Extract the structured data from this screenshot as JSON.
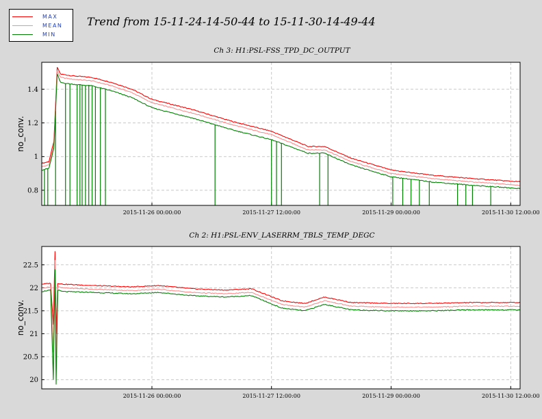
{
  "main_title": "Trend from 15-11-24-14-50-44 to 15-11-30-14-49-44",
  "legend": [
    {
      "label": "MAX",
      "color": "#ff0000"
    },
    {
      "label": "MEAN",
      "color": "#ff8c8c"
    },
    {
      "label": "MIN",
      "color": "#008000"
    }
  ],
  "chart_data": [
    {
      "type": "line",
      "title": "Ch 3: H1:PSL-FSS_TPD_DC_OUTPUT",
      "ylabel": "no_conv.",
      "xlabel": "",
      "ylim": [
        0.71,
        1.56
      ],
      "yticks": [
        0.8,
        1,
        1.2,
        1.4
      ],
      "ytick_labels": [
        "0.8",
        "1",
        "1.2",
        "1.4"
      ],
      "xlim": [
        "2015-11-24 14:50:44",
        "2015-11-30 14:49:44"
      ],
      "xticks": [
        "2015-11-26 00:00:00",
        "2015-11-27 12:00:00",
        "2015-11-29 00:00:00",
        "2015-11-30 12:00:00"
      ],
      "grid": true,
      "series": [
        {
          "name": "MAX",
          "color": "#ff0000",
          "x": [
            "2015-11-24 14:50:44",
            "2015-11-24 17:00:00",
            "2015-11-24 18:30:00",
            "2015-11-24 19:30:00",
            "2015-11-24 20:30:00",
            "2015-11-25 00:00:00",
            "2015-11-25 06:00:00",
            "2015-11-25 12:00:00",
            "2015-11-25 18:00:00",
            "2015-11-26 00:00:00",
            "2015-11-26 12:00:00",
            "2015-11-27 00:00:00",
            "2015-11-27 12:00:00",
            "2015-11-27 23:00:00",
            "2015-11-28 04:00:00",
            "2015-11-28 12:00:00",
            "2015-11-29 00:00:00",
            "2015-11-29 12:00:00",
            "2015-11-30 00:00:00",
            "2015-11-30 14:49:44"
          ],
          "y": [
            0.96,
            0.97,
            1.09,
            1.53,
            1.49,
            1.48,
            1.47,
            1.44,
            1.4,
            1.34,
            1.28,
            1.21,
            1.15,
            1.06,
            1.06,
            0.99,
            0.92,
            0.89,
            0.87,
            0.85
          ]
        },
        {
          "name": "MEAN",
          "color": "#ff8c8c",
          "x": [
            "2015-11-24 14:50:44",
            "2015-11-24 17:00:00",
            "2015-11-24 18:30:00",
            "2015-11-24 19:30:00",
            "2015-11-24 20:30:00",
            "2015-11-25 00:00:00",
            "2015-11-25 06:00:00",
            "2015-11-25 12:00:00",
            "2015-11-25 18:00:00",
            "2015-11-26 00:00:00",
            "2015-11-26 12:00:00",
            "2015-11-27 00:00:00",
            "2015-11-27 12:00:00",
            "2015-11-27 23:00:00",
            "2015-11-28 04:00:00",
            "2015-11-28 12:00:00",
            "2015-11-29 00:00:00",
            "2015-11-29 12:00:00",
            "2015-11-30 00:00:00",
            "2015-11-30 14:49:44"
          ],
          "y": [
            0.94,
            0.95,
            1.07,
            1.51,
            1.47,
            1.46,
            1.45,
            1.42,
            1.38,
            1.32,
            1.26,
            1.19,
            1.13,
            1.04,
            1.04,
            0.97,
            0.9,
            0.87,
            0.85,
            0.83
          ]
        },
        {
          "name": "MIN",
          "color": "#008000",
          "x": [
            "2015-11-24 14:50:44",
            "2015-11-24 17:00:00",
            "2015-11-24 18:30:00",
            "2015-11-24 19:30:00",
            "2015-11-24 20:30:00",
            "2015-11-25 00:00:00",
            "2015-11-25 06:00:00",
            "2015-11-25 12:00:00",
            "2015-11-25 18:00:00",
            "2015-11-26 00:00:00",
            "2015-11-26 12:00:00",
            "2015-11-27 00:00:00",
            "2015-11-27 12:00:00",
            "2015-11-27 23:00:00",
            "2015-11-28 04:00:00",
            "2015-11-28 12:00:00",
            "2015-11-29 00:00:00",
            "2015-11-29 12:00:00",
            "2015-11-30 00:00:00",
            "2015-11-30 14:49:44"
          ],
          "y": [
            0.92,
            0.93,
            1.05,
            1.49,
            1.44,
            1.43,
            1.42,
            1.39,
            1.35,
            1.29,
            1.23,
            1.16,
            1.1,
            1.02,
            1.02,
            0.95,
            0.88,
            0.85,
            0.83,
            0.81
          ]
        }
      ],
      "dropouts": {
        "series": "MIN",
        "y": 0.71,
        "x": [
          "2015-11-24 15:40:00",
          "2015-11-24 16:40:00",
          "2015-11-24 19:00:00",
          "2015-11-24 22:00:00",
          "2015-11-24 23:20:00",
          "2015-11-25 01:30:00",
          "2015-11-25 02:20:00",
          "2015-11-25 03:00:00",
          "2015-11-25 04:00:00",
          "2015-11-25 05:00:00",
          "2015-11-25 06:00:00",
          "2015-11-25 07:00:00",
          "2015-11-25 08:30:00",
          "2015-11-25 10:00:00",
          "2015-11-26 19:00:00",
          "2015-11-27 12:00:00",
          "2015-11-27 13:30:00",
          "2015-11-27 15:00:00",
          "2015-11-28 02:30:00",
          "2015-11-28 05:00:00",
          "2015-11-29 00:30:00",
          "2015-11-29 03:30:00",
          "2015-11-29 06:00:00",
          "2015-11-29 08:30:00",
          "2015-11-29 11:30:00",
          "2015-11-29 20:00:00",
          "2015-11-29 22:30:00",
          "2015-11-30 00:30:00",
          "2015-11-30 06:00:00"
        ]
      }
    },
    {
      "type": "line",
      "title": "Ch 2: H1:PSL-ENV_LASERRM_TBLS_TEMP_DEGC",
      "ylabel": "no_conv.",
      "xlabel": "",
      "ylim": [
        19.8,
        22.9
      ],
      "yticks": [
        20,
        20.5,
        21,
        21.5,
        22,
        22.5
      ],
      "ytick_labels": [
        "20",
        "20.5",
        "21",
        "21.5",
        "22",
        "22.5"
      ],
      "xlim": [
        "2015-11-24 14:50:44",
        "2015-11-30 14:49:44"
      ],
      "xticks": [
        "2015-11-26 00:00:00",
        "2015-11-27 12:00:00",
        "2015-11-29 00:00:00",
        "2015-11-30 12:00:00"
      ],
      "grid": true,
      "series": [
        {
          "name": "MAX",
          "color": "#ff0000",
          "x": [
            "2015-11-24 14:50:44",
            "2015-11-24 17:30:00",
            "2015-11-24 18:20:00",
            "2015-11-24 18:50:00",
            "2015-11-24 19:10:00",
            "2015-11-24 19:40:00",
            "2015-11-24 21:00:00",
            "2015-11-25 06:00:00",
            "2015-11-25 18:00:00",
            "2015-11-26 02:00:00",
            "2015-11-26 12:00:00",
            "2015-11-26 22:00:00",
            "2015-11-27 06:00:00",
            "2015-11-27 15:00:00",
            "2015-11-27 22:00:00",
            "2015-11-28 04:00:00",
            "2015-11-28 12:00:00",
            "2015-11-29 00:00:00",
            "2015-11-29 12:00:00",
            "2015-11-30 00:00:00",
            "2015-11-30 14:49:44"
          ],
          "y": [
            22.08,
            22.1,
            21.2,
            22.8,
            21.0,
            22.1,
            22.08,
            22.05,
            22.02,
            22.05,
            21.98,
            21.95,
            21.98,
            21.72,
            21.66,
            21.8,
            21.68,
            21.66,
            21.66,
            21.68,
            21.68
          ]
        },
        {
          "name": "MEAN",
          "color": "#ff8c8c",
          "x": [
            "2015-11-24 14:50:44",
            "2015-11-24 17:30:00",
            "2015-11-24 18:20:00",
            "2015-11-24 18:50:00",
            "2015-11-24 19:10:00",
            "2015-11-24 19:40:00",
            "2015-11-24 21:00:00",
            "2015-11-25 06:00:00",
            "2015-11-25 18:00:00",
            "2015-11-26 02:00:00",
            "2015-11-26 12:00:00",
            "2015-11-26 22:00:00",
            "2015-11-27 06:00:00",
            "2015-11-27 15:00:00",
            "2015-11-27 22:00:00",
            "2015-11-28 04:00:00",
            "2015-11-28 12:00:00",
            "2015-11-29 00:00:00",
            "2015-11-29 12:00:00",
            "2015-11-30 00:00:00",
            "2015-11-30 14:49:44"
          ],
          "y": [
            22.0,
            22.02,
            20.6,
            22.6,
            20.4,
            22.02,
            22.0,
            21.97,
            21.94,
            21.97,
            21.9,
            21.87,
            21.9,
            21.64,
            21.58,
            21.72,
            21.6,
            21.58,
            21.58,
            21.6,
            21.6
          ]
        },
        {
          "name": "MIN",
          "color": "#008000",
          "x": [
            "2015-11-24 14:50:44",
            "2015-11-24 17:30:00",
            "2015-11-24 18:20:00",
            "2015-11-24 18:50:00",
            "2015-11-24 19:10:00",
            "2015-11-24 19:40:00",
            "2015-11-24 21:00:00",
            "2015-11-25 06:00:00",
            "2015-11-25 18:00:00",
            "2015-11-26 02:00:00",
            "2015-11-26 12:00:00",
            "2015-11-26 22:00:00",
            "2015-11-27 06:00:00",
            "2015-11-27 15:00:00",
            "2015-11-27 22:00:00",
            "2015-11-28 04:00:00",
            "2015-11-28 12:00:00",
            "2015-11-29 00:00:00",
            "2015-11-29 12:00:00",
            "2015-11-30 00:00:00",
            "2015-11-30 14:49:44"
          ],
          "y": [
            21.92,
            21.95,
            20.0,
            22.4,
            19.9,
            21.95,
            21.92,
            21.9,
            21.87,
            21.9,
            21.83,
            21.8,
            21.83,
            21.56,
            21.5,
            21.64,
            21.52,
            21.5,
            21.5,
            21.52,
            21.52
          ]
        }
      ]
    }
  ]
}
